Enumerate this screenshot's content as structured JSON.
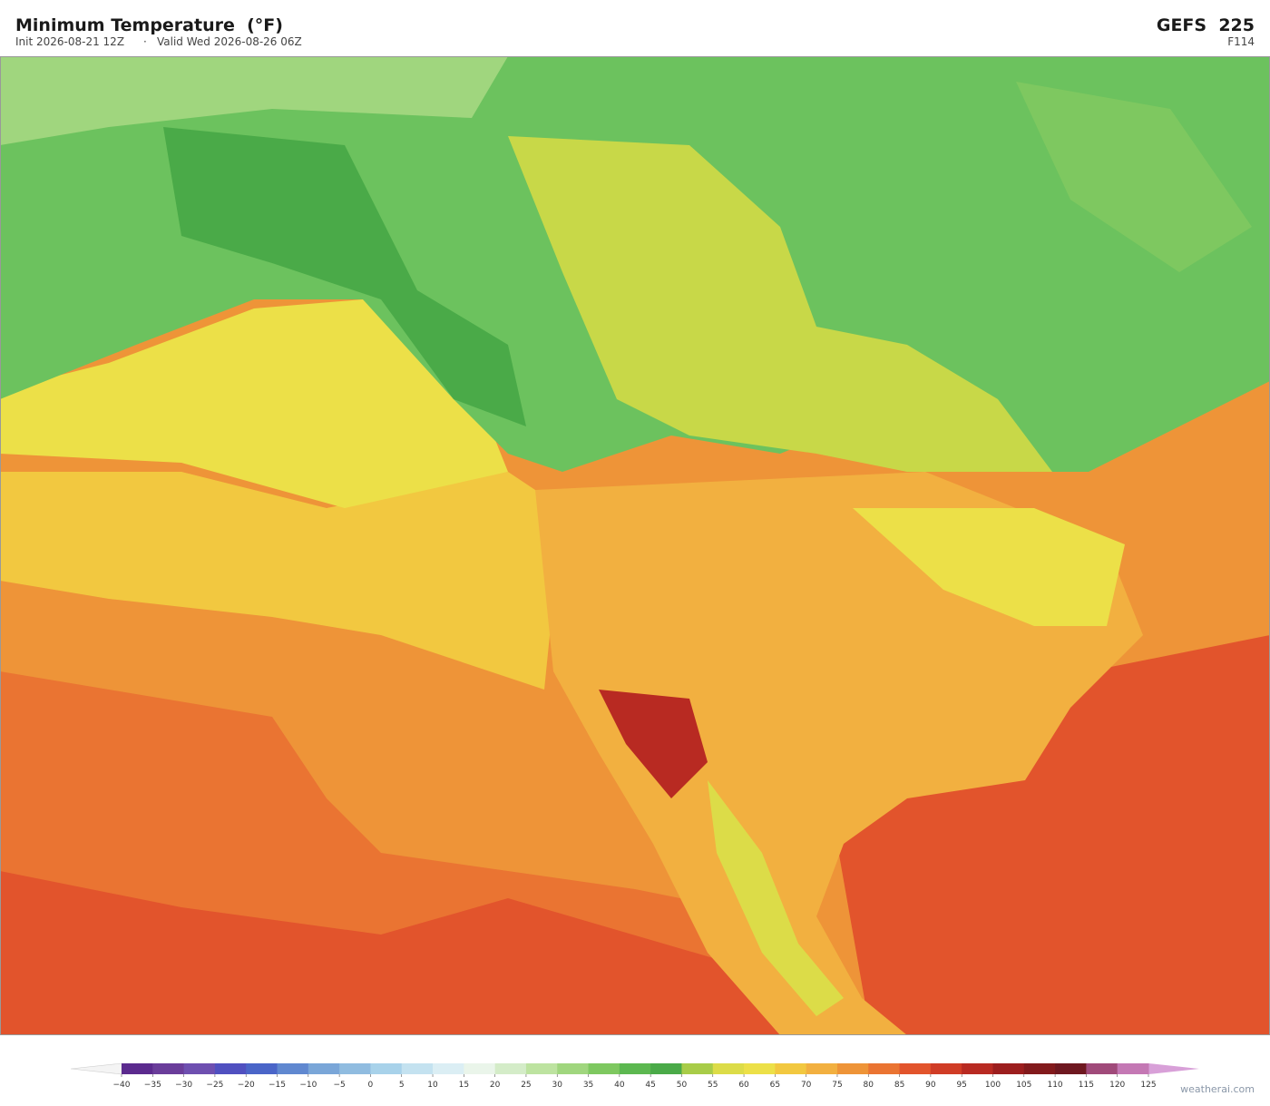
{
  "header": {
    "title": "Minimum Temperature  (°F)",
    "init": "Init 2026-08-21 12Z",
    "separator": "·",
    "valid": "Valid Wed 2026-08-26 06Z",
    "model": "GEFS  225",
    "forecast_hour": "F114"
  },
  "colorbar": {
    "ticks": [
      {
        "value": -40,
        "label": "−40"
      },
      {
        "value": -35,
        "label": "−35"
      },
      {
        "value": -30,
        "label": "−30"
      },
      {
        "value": -25,
        "label": "−25"
      },
      {
        "value": -20,
        "label": "−20"
      },
      {
        "value": -15,
        "label": "−15"
      },
      {
        "value": -10,
        "label": "−10"
      },
      {
        "value": -5,
        "label": "−5"
      },
      0,
      5,
      10,
      15,
      20,
      25,
      30,
      35,
      40,
      45,
      50,
      55,
      60,
      65,
      70,
      75,
      80,
      85,
      90,
      95,
      100,
      105,
      110,
      115,
      120,
      125
    ],
    "colors": [
      "#5b2a8e",
      "#6a3d9a",
      "#6e4fb0",
      "#5050c0",
      "#4a65c8",
      "#6088d0",
      "#7aa6d8",
      "#90bce0",
      "#a8d2ea",
      "#c4e2f0",
      "#dbeef4",
      "#eaf5ea",
      "#d4ecc8",
      "#bde3a0",
      "#a0d67e",
      "#7ec860",
      "#5cb850",
      "#4aaa48",
      "#a8cc48",
      "#dcdc48",
      "#ece048",
      "#f2c840",
      "#f2b040",
      "#ee9438",
      "#ea7432",
      "#e2542c",
      "#d03c26",
      "#b82a22",
      "#9c1e1e",
      "#821a1c",
      "#6e1820",
      "#a04a7a",
      "#c478b4"
    ],
    "under_color": "#f4f4f4",
    "over_color": "#d8a0d8"
  },
  "watermark": "weatherai.com"
}
